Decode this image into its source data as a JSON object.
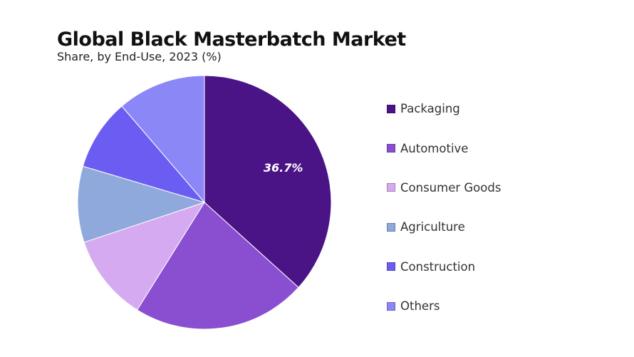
{
  "chart_data": {
    "type": "pie",
    "title": "Global Black Masterbatch Market",
    "subtitle": "Share, by End-Use, 2023 (%)",
    "start_angle": "12 o'clock, clockwise",
    "legend_position": "right",
    "slices": [
      {
        "label": "Packaging",
        "value": 36.7,
        "color": "#4a1486",
        "data_label": "36.7%"
      },
      {
        "label": "Automotive",
        "value": 22.2,
        "color": "#8a4fd0"
      },
      {
        "label": "Consumer Goods",
        "value": 11.0,
        "color": "#d6aaf1"
      },
      {
        "label": "Agriculture",
        "value": 9.7,
        "color": "#8fa9dc"
      },
      {
        "label": "Construction",
        "value": 9.1,
        "color": "#6b5df1"
      },
      {
        "label": "Others",
        "value": 11.3,
        "color": "#8c87f6"
      }
    ]
  }
}
